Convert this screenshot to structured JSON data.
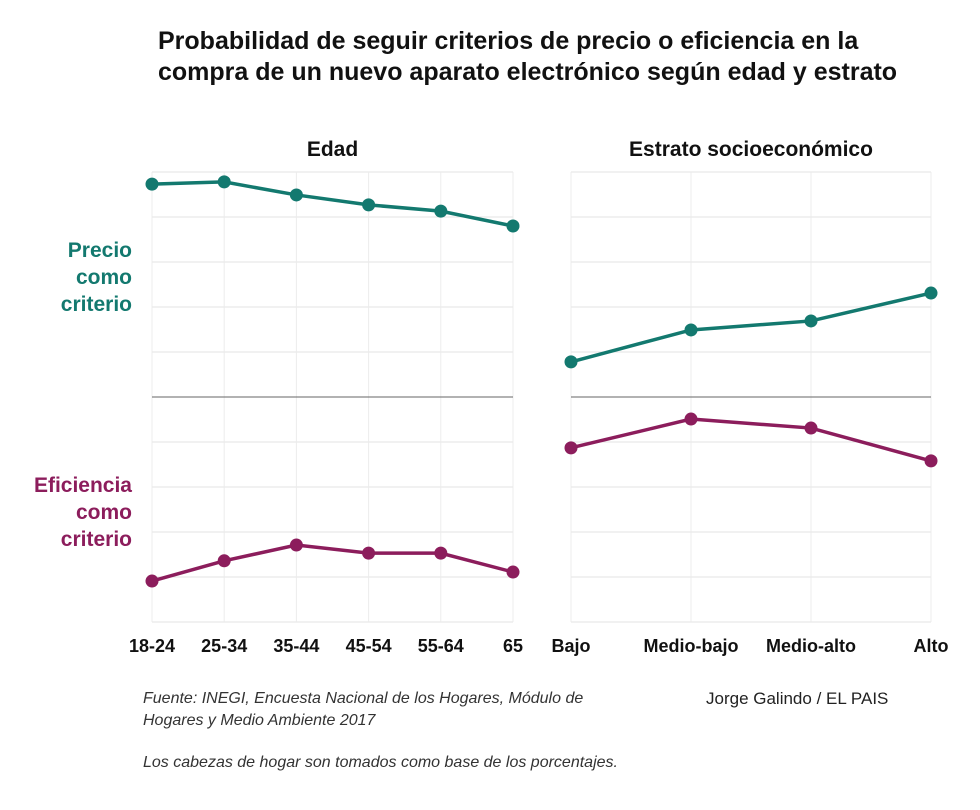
{
  "title": "Probabilidad de seguir criterios de precio o eficiencia en la compra de un nuevo aparato electrónico según edad y estrato",
  "source": "Fuente: INEGI, Encuesta Nacional de los Hogares, Módulo de Hogares y Medio Ambiente 2017",
  "note": "Los cabezas de hogar son tomados como base de los porcentajes.",
  "credit": "Jorge Galindo / EL PAIS",
  "colors": {
    "precio": "#13796f",
    "eficiencia": "#8c1d5c"
  },
  "row_labels": {
    "precio": [
      "Precio",
      "como",
      "criterio"
    ],
    "eficiencia": [
      "Eficiencia",
      "como",
      "criterio"
    ]
  },
  "chart_data": [
    {
      "type": "line",
      "title": "Edad",
      "categories": [
        "18-24",
        "25-34",
        "35-44",
        "45-54",
        "55-64",
        "65"
      ],
      "ylim": [
        -5,
        5
      ],
      "grid": true,
      "series": [
        {
          "name": "Precio como criterio",
          "values": [
            4.73,
            4.78,
            4.49,
            4.27,
            4.13,
            3.8
          ]
        },
        {
          "name": "Eficiencia como criterio",
          "values": [
            -4.09,
            -3.64,
            -3.29,
            -3.47,
            -3.47,
            -3.89
          ]
        }
      ]
    },
    {
      "type": "line",
      "title": "Estrato socioeconómico",
      "categories": [
        "Bajo",
        "Medio-bajo",
        "Medio-alto",
        "Alto"
      ],
      "ylim": [
        -5,
        5
      ],
      "grid": true,
      "series": [
        {
          "name": "Precio como criterio",
          "values": [
            0.78,
            1.49,
            1.69,
            2.31
          ]
        },
        {
          "name": "Eficiencia como criterio",
          "values": [
            -1.13,
            -0.49,
            -0.69,
            -1.42
          ]
        }
      ]
    }
  ]
}
